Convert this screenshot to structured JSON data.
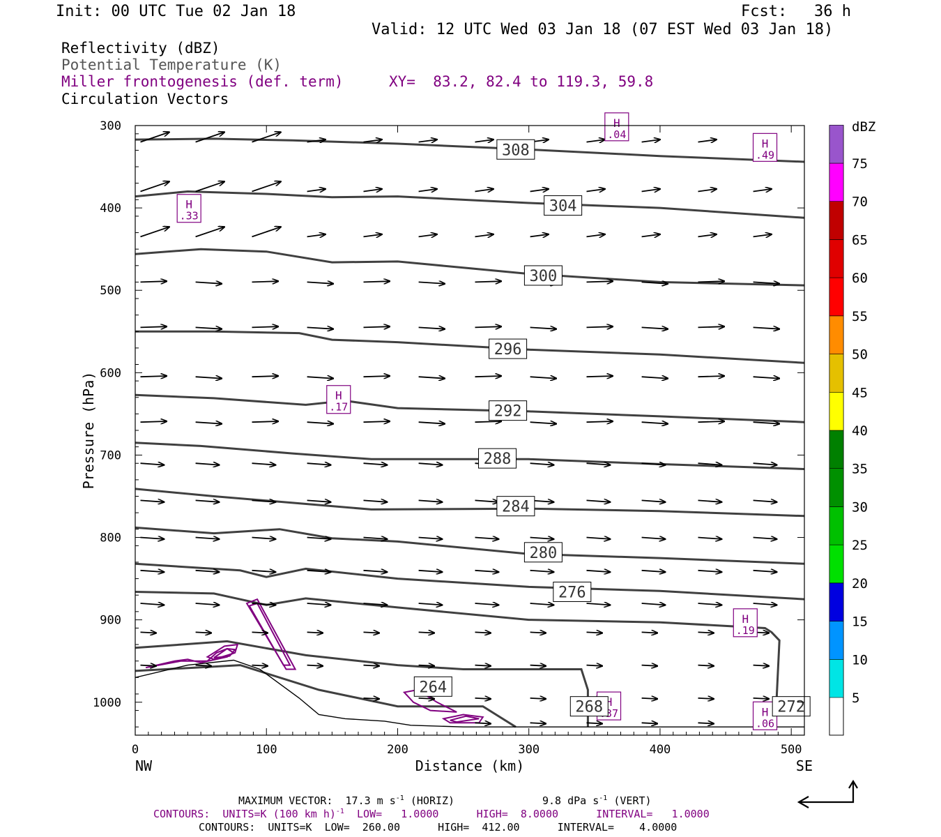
{
  "header": {
    "init": "Init: 00 UTC Tue 02 Jan 18",
    "fcst_label": "Fcst:",
    "fcst_value": "36 h",
    "valid": "Valid: 12 UTC Wed 03 Jan 18 (07 EST Wed 03 Jan 18)"
  },
  "legend": {
    "reflectivity": "Reflectivity (dBZ)",
    "theta": "Potential Temperature (K)",
    "miller": "Miller frontogenesis (def. term)",
    "xy": "XY=  83.2, 82.4 to 119.3, 59.8",
    "vectors": "Circulation Vectors"
  },
  "colors": {
    "theta": "#404040",
    "frontogenesis": "#800080",
    "vectors": "#000000"
  },
  "chart_data": {
    "type": "cross-section",
    "xlabel": "Distance (km)",
    "ylabel": "Pressure (hPa)",
    "xlim": [
      0,
      510
    ],
    "ylim": [
      1040,
      300
    ],
    "x_ticks": [
      0,
      100,
      200,
      300,
      400,
      500
    ],
    "y_ticks": [
      300,
      400,
      500,
      600,
      700,
      800,
      900,
      1000
    ],
    "x_tick_labels": [
      "0",
      "100",
      "200",
      "300",
      "400",
      "500"
    ],
    "y_tick_labels": [
      "300",
      "400",
      "500",
      "600",
      "700",
      "800",
      "900",
      "1000"
    ],
    "left_end_label": "NW",
    "right_end_label": "SE",
    "theta_labels": [
      {
        "text": "308",
        "x": 290,
        "p": 329
      },
      {
        "text": "304",
        "x": 326,
        "p": 397
      },
      {
        "text": "300",
        "x": 311,
        "p": 482
      },
      {
        "text": "296",
        "x": 284,
        "p": 571
      },
      {
        "text": "292",
        "x": 284,
        "p": 646
      },
      {
        "text": "288",
        "x": 276,
        "p": 704
      },
      {
        "text": "284",
        "x": 290,
        "p": 762
      },
      {
        "text": "280",
        "x": 311,
        "p": 818
      },
      {
        "text": "276",
        "x": 333,
        "p": 866
      },
      {
        "text": "264",
        "x": 227,
        "p": 981
      },
      {
        "text": "268",
        "x": 346,
        "p": 1005
      },
      {
        "text": "272",
        "x": 500,
        "p": 1005
      }
    ],
    "theta_contours": [
      [
        [
          0,
          317
        ],
        [
          60,
          316
        ],
        [
          120,
          318
        ],
        [
          200,
          322
        ],
        [
          300,
          329
        ],
        [
          400,
          337
        ],
        [
          510,
          344
        ]
      ],
      [
        [
          0,
          386
        ],
        [
          40,
          380
        ],
        [
          100,
          383
        ],
        [
          150,
          387
        ],
        [
          200,
          386
        ],
        [
          300,
          394
        ],
        [
          400,
          400
        ],
        [
          510,
          412
        ]
      ],
      [
        [
          0,
          456
        ],
        [
          50,
          450
        ],
        [
          100,
          453
        ],
        [
          150,
          466
        ],
        [
          200,
          465
        ],
        [
          300,
          480
        ],
        [
          400,
          490
        ],
        [
          510,
          494
        ]
      ],
      [
        [
          0,
          550
        ],
        [
          60,
          550
        ],
        [
          125,
          552
        ],
        [
          150,
          560
        ],
        [
          200,
          563
        ],
        [
          300,
          572
        ],
        [
          400,
          578
        ],
        [
          510,
          588
        ]
      ],
      [
        [
          0,
          627
        ],
        [
          60,
          631
        ],
        [
          130,
          639
        ],
        [
          160,
          634
        ],
        [
          200,
          643
        ],
        [
          300,
          647
        ],
        [
          400,
          653
        ],
        [
          510,
          660
        ]
      ],
      [
        [
          0,
          685
        ],
        [
          50,
          689
        ],
        [
          120,
          698
        ],
        [
          180,
          705
        ],
        [
          300,
          705
        ],
        [
          400,
          711
        ],
        [
          510,
          717
        ]
      ],
      [
        [
          0,
          741
        ],
        [
          60,
          750
        ],
        [
          120,
          758
        ],
        [
          180,
          766
        ],
        [
          300,
          765
        ],
        [
          400,
          768
        ],
        [
          510,
          774
        ]
      ],
      [
        [
          0,
          788
        ],
        [
          60,
          795
        ],
        [
          110,
          790
        ],
        [
          150,
          801
        ],
        [
          200,
          805
        ],
        [
          300,
          820
        ],
        [
          400,
          825
        ],
        [
          510,
          832
        ]
      ],
      [
        [
          0,
          832
        ],
        [
          80,
          840
        ],
        [
          100,
          848
        ],
        [
          130,
          838
        ],
        [
          200,
          850
        ],
        [
          300,
          860
        ],
        [
          400,
          865
        ],
        [
          510,
          875
        ]
      ],
      [
        [
          0,
          866
        ],
        [
          60,
          868
        ],
        [
          100,
          882
        ],
        [
          130,
          874
        ],
        [
          200,
          885
        ],
        [
          300,
          900
        ],
        [
          400,
          903
        ],
        [
          480,
          910
        ],
        [
          485,
          915
        ],
        [
          491,
          925
        ],
        [
          489,
          990
        ],
        [
          488,
          1030
        ]
      ],
      [
        [
          0,
          934
        ],
        [
          70,
          926
        ],
        [
          130,
          943
        ],
        [
          200,
          955
        ],
        [
          250,
          960
        ],
        [
          340,
          960
        ],
        [
          345,
          985
        ],
        [
          345,
          1030
        ]
      ],
      [
        [
          0,
          962
        ],
        [
          80,
          955
        ],
        [
          140,
          985
        ],
        [
          200,
          1005
        ],
        [
          265,
          1005
        ],
        [
          275,
          1015
        ],
        [
          290,
          1030
        ]
      ]
    ],
    "terrain": [
      [
        0,
        970
      ],
      [
        40,
        955
      ],
      [
        75,
        949
      ],
      [
        95,
        960
      ],
      [
        125,
        995
      ],
      [
        140,
        1015
      ],
      [
        160,
        1020
      ],
      [
        190,
        1023
      ],
      [
        210,
        1028
      ],
      [
        250,
        1030
      ],
      [
        350,
        1030
      ],
      [
        510,
        1030
      ]
    ],
    "frontogenesis_labels": [
      {
        "text": ".33",
        "x": 41,
        "p": 409
      },
      {
        "text": ".17",
        "x": 155,
        "p": 641
      },
      {
        "text": ".49",
        "x": 480,
        "p": 335
      },
      {
        "text": ".19",
        "x": 465,
        "p": 912
      },
      {
        "text": ".37",
        "x": 361,
        "p": 1013
      },
      {
        "text": ".04",
        "x": 367,
        "p": 310
      },
      {
        "text": ".06",
        "x": 480,
        "p": 1025
      }
    ],
    "frontogenesis_high": "H",
    "dbz_scale": {
      "label": "dBZ",
      "levels": [
        "5",
        "10",
        "15",
        "20",
        "25",
        "30",
        "35",
        "40",
        "45",
        "50",
        "55",
        "60",
        "65",
        "70",
        "75"
      ],
      "colors": [
        "#ffffff",
        "#00e5e5",
        "#0094ff",
        "#0000e0",
        "#00e000",
        "#00c000",
        "#009000",
        "#008000",
        "#ffff00",
        "#e5c000",
        "#ff8c00",
        "#ff0000",
        "#e00000",
        "#c00000",
        "#ff00ff",
        "#9955cc",
        "#ffffff"
      ]
    },
    "vector_grid": {
      "x": [
        0,
        42,
        85,
        127,
        170,
        212,
        255,
        297,
        340,
        382,
        425,
        467
      ],
      "p": [
        320,
        380,
        435,
        490,
        545,
        605,
        660,
        710,
        755,
        800,
        840,
        880,
        915,
        955,
        995,
        1025
      ]
    }
  },
  "footer": {
    "max_vector": "MAXIMUM VECTOR:  17.3 m s",
    "max_vector_exp": "-1",
    "max_vector_horiz": "(HORIZ)",
    "max_vector_vert": "9.8 dPa s",
    "max_vector_vert_exp": "-1",
    "max_vector_vert_tail": "(VERT)",
    "contours1_a": "CONTOURS:  UNITS=K (100 km h)",
    "contours1_exp": "-1",
    "contours1_b": "LOW=   1.0000      HIGH=  8.0000      INTERVAL=   1.0000",
    "contours2": "CONTOURS:  UNITS=K  LOW=  260.00      HIGH=  412.00      INTERVAL=    4.0000"
  }
}
